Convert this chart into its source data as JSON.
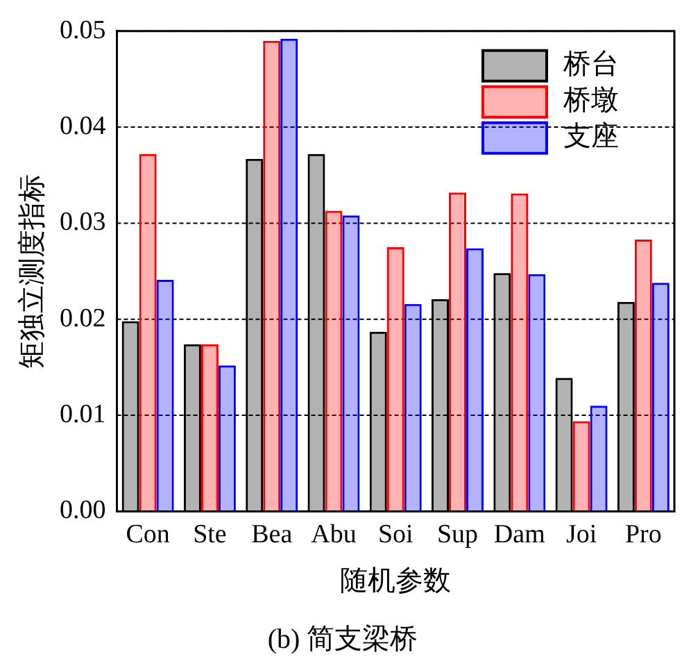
{
  "chart_data": {
    "type": "bar",
    "title": "(b) 简支梁桥",
    "xlabel": "随机参数",
    "ylabel": "矩独立测度指标",
    "categories": [
      "Con",
      "Ste",
      "Bea",
      "Abu",
      "Soi",
      "Sup",
      "Dam",
      "Joi",
      "Pro"
    ],
    "series": [
      {
        "name": "桥台",
        "color": "#000000",
        "values": [
          0.0198,
          0.0174,
          0.0367,
          0.0372,
          0.0187,
          0.0221,
          0.0248,
          0.0139,
          0.0218
        ]
      },
      {
        "name": "桥墩",
        "color": "#ff0000",
        "values": [
          0.0372,
          0.0174,
          0.049,
          0.0313,
          0.0275,
          0.0332,
          0.0331,
          0.0094,
          0.0283
        ]
      },
      {
        "name": "支座",
        "color": "#0000ff",
        "values": [
          0.0241,
          0.0152,
          0.0492,
          0.0308,
          0.0216,
          0.0274,
          0.0247,
          0.011,
          0.0238
        ]
      }
    ],
    "ylim": [
      0,
      0.05
    ],
    "yticks": [
      {
        "value": 0,
        "label": "0.00"
      },
      {
        "value": 0.01,
        "label": "0.01"
      },
      {
        "value": 0.02,
        "label": "0.02"
      },
      {
        "value": 0.03,
        "label": "0.03"
      },
      {
        "value": 0.04,
        "label": "0.04"
      },
      {
        "value": 0.05,
        "label": "0.05"
      }
    ],
    "grid": "y",
    "legend": "top right"
  }
}
